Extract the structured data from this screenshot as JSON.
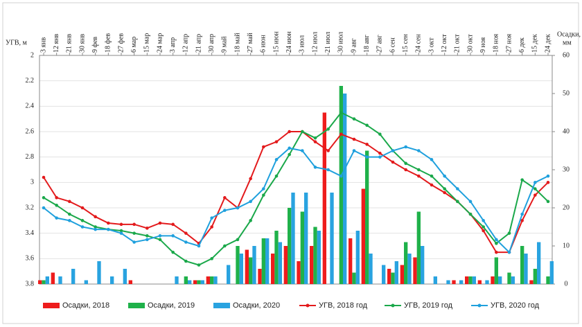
{
  "chart_data": {
    "type": "combo",
    "y_label": "УГВ, м",
    "y2_label": [
      "Осадки,",
      "мм"
    ],
    "categories": [
      "3 янв",
      "12 янв",
      "21 янв",
      "30 янв",
      "9 фев",
      "18 фев",
      "27 фев",
      "6 мар",
      "15 мар",
      "24 мар",
      "3 апр",
      "12 апр",
      "21 апр",
      "30 апр",
      "9 май",
      "18 май",
      "27 май",
      "6 июн",
      "15 июн",
      "24 июн",
      "3 июл",
      "12 июл",
      "21 июл",
      "30 июл",
      "9 авг",
      "18 авг",
      "27 авг",
      "6 сен",
      "15 сен",
      "24 сен",
      "3 окт",
      "12 окт",
      "21 окт",
      "30 окт",
      "9 ноя",
      "18 ноя",
      "27 ноя",
      "6 дек",
      "15 дек",
      "24 дек"
    ],
    "ylim": [
      2,
      3.8
    ],
    "y_inverted": true,
    "yticks": [
      2,
      2.2,
      2.4,
      2.6,
      2.8,
      3,
      3.2,
      3.4,
      3.6,
      3.8
    ],
    "y2lim": [
      0,
      60
    ],
    "y2ticks": [
      0,
      10,
      20,
      30,
      40,
      50,
      60
    ],
    "grid": true,
    "series": [
      {
        "name": "Осадки, 2018",
        "kind": "bar",
        "axis": "y2",
        "color": "#ee1c1c",
        "values": [
          1,
          3,
          0,
          0,
          0,
          0,
          0,
          1,
          0,
          0,
          0,
          0,
          1,
          2,
          0,
          0,
          9,
          4,
          8,
          10,
          6,
          10,
          45,
          0,
          12,
          25,
          0,
          4,
          5,
          7,
          0,
          0,
          1,
          2,
          1,
          2,
          0,
          0,
          1,
          0
        ]
      },
      {
        "name": "Осадки, 2019",
        "kind": "bar",
        "axis": "y2",
        "color": "#1fb14a",
        "values": [
          1,
          0,
          0,
          0,
          0,
          0,
          0,
          0,
          0,
          0,
          0,
          2,
          1,
          2,
          0,
          10,
          7,
          12,
          14,
          20,
          19,
          15,
          0,
          52,
          3,
          35,
          0,
          3,
          11,
          19,
          0,
          0,
          0,
          2,
          0,
          7,
          3,
          10,
          4,
          2
        ]
      },
      {
        "name": "Осадки, 2020",
        "kind": "bar",
        "axis": "y2",
        "color": "#29a3e0",
        "values": [
          2,
          2,
          4,
          1,
          6,
          2,
          4,
          0,
          0,
          0,
          2,
          1,
          1,
          2,
          5,
          8,
          10,
          12,
          11,
          24,
          24,
          14,
          24,
          50,
          14,
          8,
          5,
          6,
          8,
          10,
          2,
          1,
          1,
          2,
          1,
          2,
          2,
          8,
          11,
          6
        ]
      },
      {
        "name": "УГВ, 2018 год",
        "kind": "line",
        "color": "#e31a1c",
        "values": [
          2.96,
          3.12,
          3.15,
          3.2,
          3.27,
          3.32,
          3.33,
          3.33,
          3.36,
          3.32,
          3.33,
          3.4,
          3.48,
          3.35,
          3.12,
          3.2,
          2.97,
          2.72,
          2.68,
          2.6,
          2.6,
          2.68,
          2.75,
          2.62,
          2.66,
          2.7,
          2.77,
          2.84,
          2.9,
          2.95,
          3.02,
          3.08,
          3.15,
          3.25,
          3.38,
          3.55,
          3.55,
          3.3,
          3.1,
          3.0
        ]
      },
      {
        "name": "УГВ, 2019 год",
        "kind": "line",
        "color": "#1aa84a",
        "values": [
          3.12,
          3.18,
          3.25,
          3.3,
          3.35,
          3.37,
          3.38,
          3.4,
          3.42,
          3.45,
          3.55,
          3.62,
          3.65,
          3.6,
          3.5,
          3.45,
          3.3,
          3.1,
          2.95,
          2.78,
          2.6,
          2.65,
          2.58,
          2.45,
          2.5,
          2.55,
          2.62,
          2.75,
          2.85,
          2.9,
          2.95,
          3.05,
          3.15,
          3.25,
          3.35,
          3.48,
          3.4,
          2.98,
          3.05,
          3.15
        ]
      },
      {
        "name": "УГВ, 2020 год",
        "kind": "line",
        "color": "#1fa0dd",
        "values": [
          3.2,
          3.28,
          3.3,
          3.35,
          3.37,
          3.37,
          3.4,
          3.47,
          3.45,
          3.42,
          3.42,
          3.47,
          3.5,
          3.28,
          3.22,
          3.2,
          3.15,
          3.05,
          2.82,
          2.73,
          2.75,
          2.88,
          2.9,
          2.95,
          2.75,
          2.8,
          2.8,
          2.75,
          2.72,
          2.75,
          2.82,
          2.95,
          3.05,
          3.15,
          3.3,
          3.45,
          3.55,
          3.25,
          3.0,
          2.95
        ]
      }
    ]
  }
}
